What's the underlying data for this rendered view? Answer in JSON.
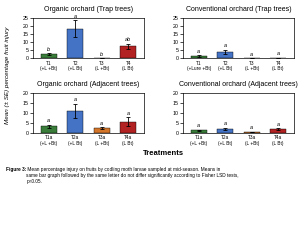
{
  "chart_data": [
    {
      "type": "bar",
      "title": "Organic orchard (Trap trees)",
      "categories": [
        "T1 (+L +Bt)",
        "T2 (+L Bt)",
        "T3 (L +Bt)",
        "T4 (L Bt)"
      ],
      "values": [
        2.8,
        18.5,
        0.25,
        7.5
      ],
      "errors": [
        0.6,
        5.2,
        0.08,
        1.8
      ],
      "colors": [
        "#3a7d3a",
        "#4472c4",
        "#d4762a",
        "#b22222"
      ],
      "annotations": [
        "b",
        "a",
        "b",
        "ab"
      ],
      "ylim": [
        0,
        25
      ],
      "yticks": [
        0,
        5,
        10,
        15,
        20,
        25
      ]
    },
    {
      "type": "bar",
      "title": "Conventional orchard (Trap trees)",
      "categories": [
        "T1 (+Lure +Bt)",
        "T2 (+L Bt)",
        "T3 (L +Bt)",
        "T4 (L Bt)"
      ],
      "values": [
        1.5,
        4.0,
        0.08,
        0.4
      ],
      "errors": [
        0.5,
        1.5,
        0.03,
        0.15
      ],
      "colors": [
        "#3a7d3a",
        "#4472c4",
        "#d4762a",
        "#b22222"
      ],
      "annotations": [
        "a",
        "a",
        "a",
        "a"
      ],
      "ylim": [
        0,
        25
      ],
      "yticks": [
        0,
        5,
        10,
        15,
        20,
        25
      ]
    },
    {
      "type": "bar",
      "title": "Organic orchard (Adjacent trees)",
      "categories": [
        "T1a (+L +Bt)",
        "T2a (+L Bt)",
        "T3a (L +Bt)",
        "T4a (L Bt)"
      ],
      "values": [
        3.2,
        11.0,
        2.3,
        5.5
      ],
      "errors": [
        0.8,
        3.5,
        0.6,
        2.2
      ],
      "colors": [
        "#3a7d3a",
        "#4472c4",
        "#d4762a",
        "#b22222"
      ],
      "annotations": [
        "a",
        "a",
        "a",
        "a"
      ],
      "ylim": [
        0,
        20
      ],
      "yticks": [
        0,
        5,
        10,
        15,
        20
      ]
    },
    {
      "type": "bar",
      "title": "Conventional orchard (Adjacent trees)",
      "categories": [
        "T1a (+L +Bt)",
        "T2a (+L Bt)",
        "T3a (L +Bt)",
        "T4a (L Bt)"
      ],
      "values": [
        1.2,
        2.0,
        0.4,
        1.8
      ],
      "errors": [
        0.35,
        0.55,
        0.15,
        0.5
      ],
      "colors": [
        "#3a7d3a",
        "#4472c4",
        "#d4762a",
        "#b22222"
      ],
      "annotations": [
        "a",
        "a",
        "a",
        "a"
      ],
      "ylim": [
        0,
        20
      ],
      "yticks": [
        0,
        5,
        10,
        15,
        20
      ]
    }
  ],
  "xlabel": "Treatments",
  "ylabel": "Mean (± SE) percentage fruit injury",
  "caption_label": "Figure 3:",
  "caption": " Mean percentage injury on fruits by codling moth larvae sampled at mid-season. Means in\nsame bar graph followed by the same letter do not differ significantly according to Fisher LSD tests,\np<0.05."
}
